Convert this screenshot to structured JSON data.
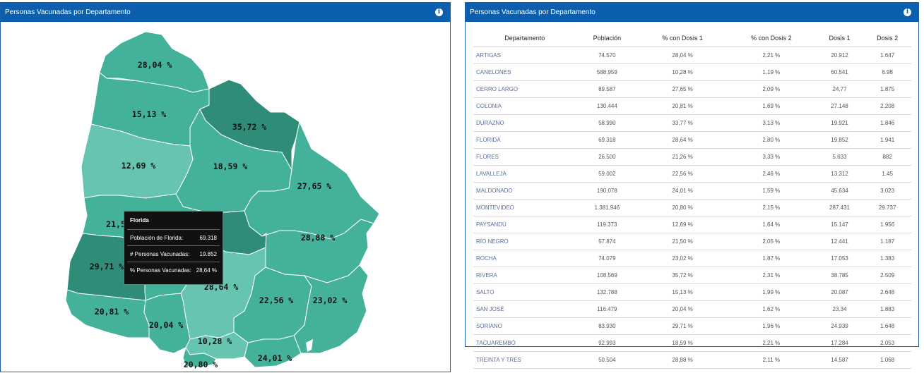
{
  "left_panel": {
    "title": "Personas Vacunadas por Departamento"
  },
  "right_panel": {
    "title": "Personas Vacunadas por Departamento"
  },
  "icons": {
    "info": "info-icon"
  },
  "colors": {
    "header": "#0c5fae",
    "map_dark": "#2f8c79",
    "map_mid": "#44b29b",
    "map_light": "#66c4b1"
  },
  "map": {
    "labels": [
      {
        "id": "artigas",
        "text": "28,04 %"
      },
      {
        "id": "salto",
        "text": "15,13 %"
      },
      {
        "id": "rivera",
        "text": "35,72 %"
      },
      {
        "id": "paysandu",
        "text": "12,69 %"
      },
      {
        "id": "tacuarembo",
        "text": "18,59 %"
      },
      {
        "id": "cerrolargo",
        "text": "27,65 %"
      },
      {
        "id": "rionegro",
        "text": "21,5"
      },
      {
        "id": "treintaytres",
        "text": "28,88 %"
      },
      {
        "id": "soriano",
        "text": "29,71 %"
      },
      {
        "id": "florida",
        "text": "28,64 %"
      },
      {
        "id": "lavalleja",
        "text": "22,56 %"
      },
      {
        "id": "rocha",
        "text": "23,02 %"
      },
      {
        "id": "colonia",
        "text": "20,81 %"
      },
      {
        "id": "sanjose",
        "text": "20,04 %"
      },
      {
        "id": "canelones",
        "text": "10,28 %"
      },
      {
        "id": "maldonado",
        "text": "24,01 %"
      },
      {
        "id": "montevideo",
        "text": "20,80 %"
      }
    ]
  },
  "tooltip": {
    "title": "Florida",
    "rows": [
      {
        "label": "Población de Florida:",
        "value": "69.318"
      },
      {
        "label": "# Personas Vacunadas:",
        "value": "19.852"
      },
      {
        "label": "% Personas Vacunadas:",
        "value": "28,64 %"
      }
    ]
  },
  "table": {
    "headers": [
      "Departamento",
      "Población",
      "% con Dosis 1",
      "% con Dosis 2",
      "Dosis 1",
      "Dosis 2"
    ],
    "rows": [
      [
        "ARTIGAS",
        "74.570",
        "28,04 %",
        "2,21 %",
        "20.912",
        "1.647"
      ],
      [
        "CANELONES",
        "588.959",
        "10,28 %",
        "1,19 %",
        "60.541",
        "6.98"
      ],
      [
        "CERRO LARGO",
        "89.587",
        "27,65 %",
        "2,09 %",
        "24.77",
        "1.875"
      ],
      [
        "COLONIA",
        "130.444",
        "20,81 %",
        "1,69 %",
        "27.148",
        "2.208"
      ],
      [
        "DURAZNO",
        "58.990",
        "33,77 %",
        "3,13 %",
        "19.921",
        "1.846"
      ],
      [
        "FLORIDA",
        "69.318",
        "28,64 %",
        "2,80 %",
        "19.852",
        "1.941"
      ],
      [
        "FLORES",
        "26.500",
        "21,26 %",
        "3,33 %",
        "5.633",
        "882"
      ],
      [
        "LAVALLEJA",
        "59.002",
        "22,56 %",
        "2,46 %",
        "13.312",
        "1.45"
      ],
      [
        "MALDONADO",
        "190.078",
        "24,01 %",
        "1,59 %",
        "45.634",
        "3.023"
      ],
      [
        "MONTEVIDEO",
        "1.381.946",
        "20,80 %",
        "2,15 %",
        "287.431",
        "29.737"
      ],
      [
        "PAYSANDÚ",
        "119.373",
        "12,69 %",
        "1,64 %",
        "15.147",
        "1.956"
      ],
      [
        "RÍO NEGRO",
        "57.874",
        "21,50 %",
        "2,05 %",
        "12.441",
        "1.187"
      ],
      [
        "ROCHA",
        "74.079",
        "23,02 %",
        "1,87 %",
        "17.053",
        "1.383"
      ],
      [
        "RIVERA",
        "108.569",
        "35,72 %",
        "2,31 %",
        "38.785",
        "2.509"
      ],
      [
        "SALTO",
        "132.788",
        "15,13 %",
        "1,99 %",
        "20.087",
        "2.648"
      ],
      [
        "SAN JOSÉ",
        "116.479",
        "20,04 %",
        "1,62 %",
        "23.34",
        "1.883"
      ],
      [
        "SORIANO",
        "83.930",
        "29,71 %",
        "1,96 %",
        "24.939",
        "1.648"
      ],
      [
        "TACUAREMBÓ",
        "92.993",
        "18,59 %",
        "2,21 %",
        "17.284",
        "2.053"
      ],
      [
        "TREINTA Y TRES",
        "50.504",
        "28,88 %",
        "2,11 %",
        "14.587",
        "1.068"
      ]
    ]
  }
}
